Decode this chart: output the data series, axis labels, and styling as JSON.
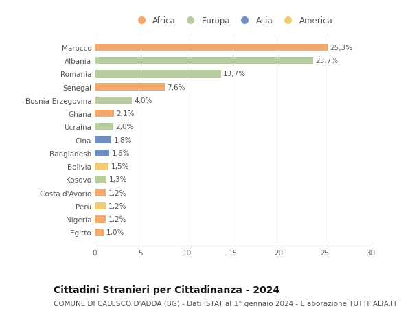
{
  "categories": [
    "Marocco",
    "Albania",
    "Romania",
    "Senegal",
    "Bosnia-Erzegovina",
    "Ghana",
    "Ucraina",
    "Cina",
    "Bangladesh",
    "Bolivia",
    "Kosovo",
    "Costa d'Avorio",
    "Perù",
    "Nigeria",
    "Egitto"
  ],
  "values": [
    25.3,
    23.7,
    13.7,
    7.6,
    4.0,
    2.1,
    2.0,
    1.8,
    1.6,
    1.5,
    1.3,
    1.2,
    1.2,
    1.2,
    1.0
  ],
  "labels": [
    "25,3%",
    "23,7%",
    "13,7%",
    "7,6%",
    "4,0%",
    "2,1%",
    "2,0%",
    "1,8%",
    "1,6%",
    "1,5%",
    "1,3%",
    "1,2%",
    "1,2%",
    "1,2%",
    "1,0%"
  ],
  "continents": [
    "Africa",
    "Europa",
    "Europa",
    "Africa",
    "Europa",
    "Africa",
    "Europa",
    "Asia",
    "Asia",
    "America",
    "Europa",
    "Africa",
    "America",
    "Africa",
    "Africa"
  ],
  "continent_colors": {
    "Africa": "#F0A86C",
    "Europa": "#B8CCA0",
    "Asia": "#7090C0",
    "America": "#F0CC70"
  },
  "legend_order": [
    "Africa",
    "Europa",
    "Asia",
    "America"
  ],
  "xlim": [
    0,
    30
  ],
  "xticks": [
    0,
    5,
    10,
    15,
    20,
    25,
    30
  ],
  "title": "Cittadini Stranieri per Cittadinanza - 2024",
  "subtitle": "COMUNE DI CALUSCO D'ADDA (BG) - Dati ISTAT al 1° gennaio 2024 - Elaborazione TUTTITALIA.IT",
  "background_color": "#ffffff",
  "bar_height": 0.55,
  "grid_color": "#d0d0d0",
  "title_fontsize": 10,
  "subtitle_fontsize": 7.5,
  "label_fontsize": 7.5,
  "tick_fontsize": 7.5,
  "legend_fontsize": 8.5
}
